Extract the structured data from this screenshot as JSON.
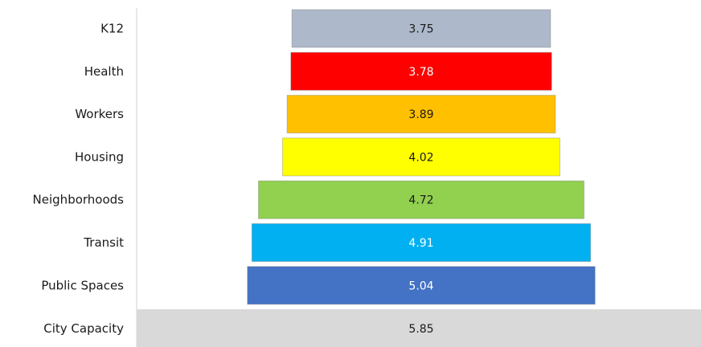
{
  "chart_data": {
    "type": "bar",
    "orientation": "horizontal",
    "layout": "funnel-centered",
    "categories": [
      "K12",
      "Health",
      "Workers",
      "Housing",
      "Neighborhoods",
      "Transit",
      "Public Spaces",
      "City Capacity"
    ],
    "values": [
      3.75,
      3.78,
      3.89,
      4.02,
      4.72,
      4.91,
      5.04,
      5.85
    ],
    "value_labels": [
      "3.75",
      "3.78",
      "3.89",
      "4.02",
      "4.72",
      "4.91",
      "5.04",
      "5.85"
    ],
    "colors": [
      "#adb9ca",
      "#ff0000",
      "#ffc000",
      "#ffff00",
      "#92d050",
      "#00b0f0",
      "#4472c4",
      "#d9d9d9"
    ],
    "label_colors": [
      "#1a1a1a",
      "#ffffff",
      "#1a1a1a",
      "#1a1a1a",
      "#1a1a1a",
      "#ffffff",
      "#ffffff",
      "#1a1a1a"
    ],
    "title": "",
    "xlabel": "",
    "ylabel": "",
    "grid": false,
    "legend": "none"
  }
}
